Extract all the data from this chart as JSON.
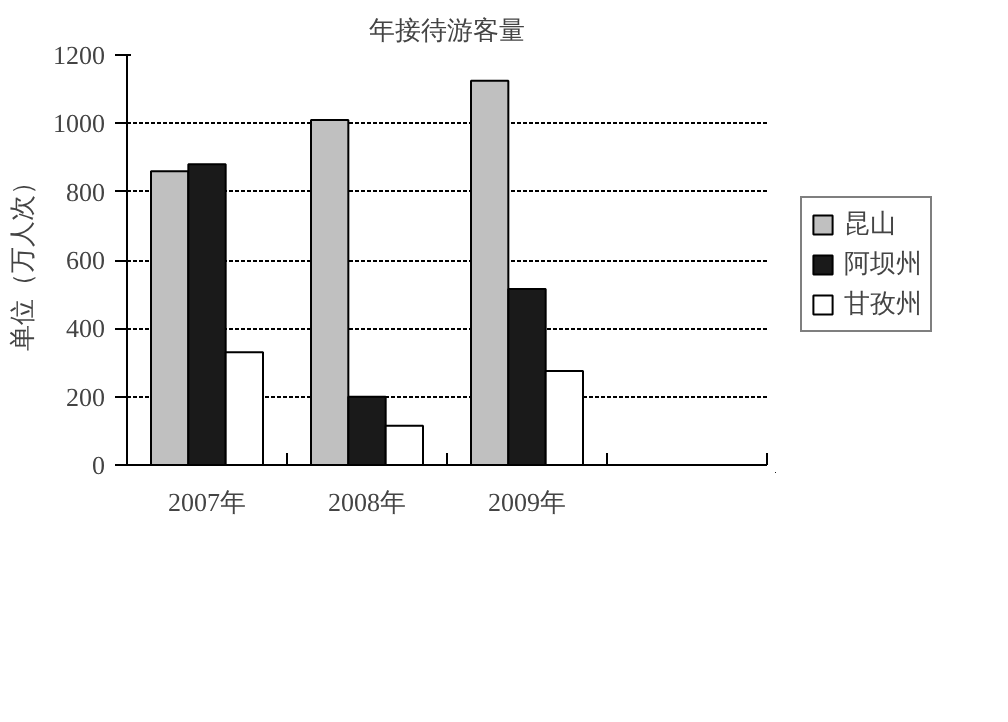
{
  "chart_data": {
    "type": "bar",
    "title": "年接待游客量",
    "ylabel": "单位（万人次）",
    "categories": [
      "2007年",
      "2008年",
      "2009年",
      null
    ],
    "series": [
      {
        "name": "昆山",
        "color": "#c0c0c0",
        "values": [
          860,
          1010,
          1125,
          null
        ]
      },
      {
        "name": "阿坝州",
        "color": "#1a1a1a",
        "values": [
          880,
          200,
          515,
          null
        ]
      },
      {
        "name": "甘孜州",
        "color": "#ffffff",
        "values": [
          330,
          115,
          275,
          null
        ]
      }
    ],
    "ylim": [
      0,
      1200
    ],
    "yticks": [
      0,
      200,
      400,
      600,
      800,
      1000,
      1200
    ],
    "grid": "y",
    "legend": "right"
  }
}
